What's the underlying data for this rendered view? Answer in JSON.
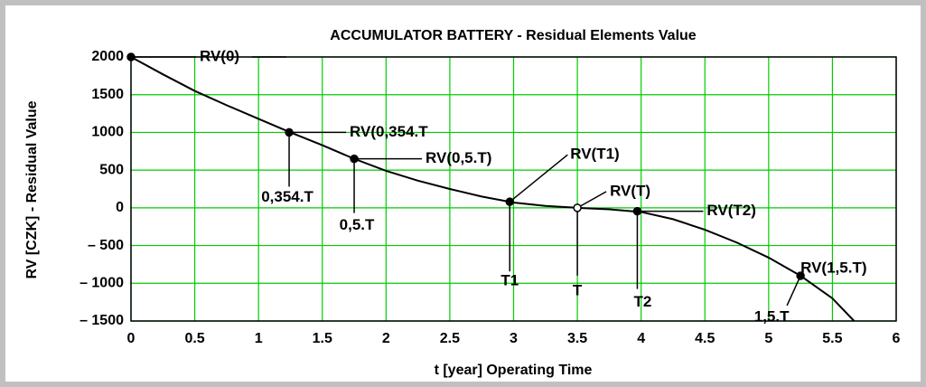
{
  "chart_data": {
    "type": "line",
    "title": "ACCUMULATOR BATTERY - Residual Elements Value",
    "x_label": "t [year] Operating Time",
    "y_label": "RV [CZK] - Residual Value",
    "xlim": [
      0,
      6
    ],
    "ylim": [
      -1500,
      2000
    ],
    "xticks": [
      0,
      0.5,
      1,
      1.5,
      2,
      2.5,
      3,
      3.5,
      4,
      4.5,
      5,
      5.5,
      6
    ],
    "yticks": [
      {
        "value": -1500,
        "label": "– 1500"
      },
      {
        "value": -1000,
        "label": "– 1000"
      },
      {
        "value": -500,
        "label": "– 500"
      },
      0,
      500,
      1000,
      1500,
      2000
    ],
    "grid": true,
    "grid_color": "#00cc00",
    "color": "#000000",
    "x": [
      0,
      0.25,
      0.5,
      0.75,
      1,
      1.25,
      1.5,
      1.75,
      2,
      2.25,
      2.5,
      2.75,
      3,
      3.25,
      3.5,
      3.75,
      4,
      4.25,
      4.5,
      4.75,
      5,
      5.25,
      5.5,
      5.67
    ],
    "values": [
      2000,
      1770,
      1550,
      1360,
      1180,
      1000,
      830,
      650,
      490,
      360,
      250,
      150,
      70,
      25,
      0,
      -20,
      -55,
      -150,
      -290,
      -460,
      -660,
      -900,
      -1200,
      -1500
    ],
    "markers": [
      {
        "label": "RV(0)",
        "x": 0,
        "y": 2000
      },
      {
        "label": "RV(0,354.T",
        "x": 1.24,
        "y": 1000,
        "time_label": "0,354.T"
      },
      {
        "label": "RV(0,5.T)",
        "x": 1.75,
        "y": 650,
        "time_label": "0,5.T"
      },
      {
        "label": "RV(T1)",
        "x": 2.97,
        "y": 80,
        "time_label": "T1"
      },
      {
        "label": "RV(T)",
        "x": 3.5,
        "y": 0,
        "time_label": "T",
        "hollow": true
      },
      {
        "label": "RV(T2)",
        "x": 3.97,
        "y": -45,
        "time_label": "T2"
      },
      {
        "label": "RV(1,5.T)",
        "x": 5.25,
        "y": -900,
        "time_label": "1,5.T"
      }
    ]
  }
}
